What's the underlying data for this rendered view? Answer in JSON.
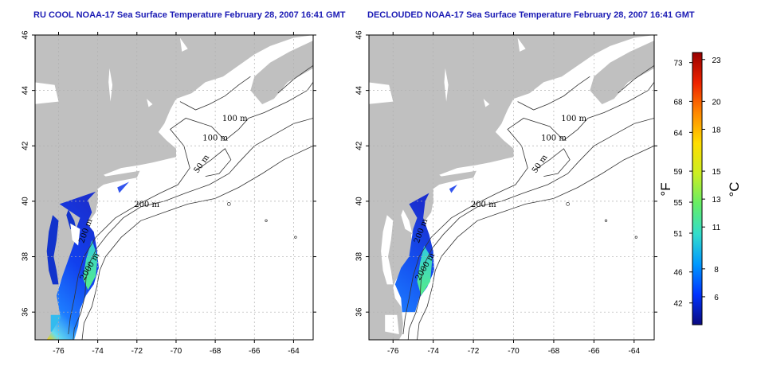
{
  "panels": [
    {
      "title": "RU COOL NOAA-17 Sea Surface Temperature February 28, 2007 16:41 GMT",
      "kind": "raw"
    },
    {
      "title": "DECLOUDED NOAA-17 Sea Surface Temperature February 28, 2007 16:41 GMT",
      "kind": "declouded"
    }
  ],
  "map_axes": {
    "lon_ticks": [
      "-76",
      "-74",
      "-72",
      "-70",
      "-68",
      "-66",
      "-64"
    ],
    "lat_ticks": [
      "36",
      "38",
      "40",
      "42",
      "44",
      "46"
    ],
    "lon_range": [
      -77.2,
      -63
    ],
    "lat_range": [
      35,
      46
    ]
  },
  "contour_labels": [
    "100 m",
    "100 m",
    "50 m",
    "200 m",
    "2000 m",
    "200 m"
  ],
  "colorbar": {
    "fahrenheit_ticks": [
      "73",
      "68",
      "64",
      "59",
      "55",
      "51",
      "46",
      "42"
    ],
    "celsius_ticks": [
      "23",
      "20",
      "18",
      "15",
      "13",
      "11",
      "8",
      "6"
    ],
    "fahrenheit_label": "°F",
    "celsius_label": "°C",
    "range_c": [
      4,
      23.5
    ],
    "colors": [
      "#0a0a80",
      "#0033ff",
      "#0099ff",
      "#33ddcc",
      "#66ee66",
      "#ccee22",
      "#ffdd00",
      "#ff8800",
      "#ee2200",
      "#990000"
    ]
  },
  "colors": {
    "land": "#c0c0c0",
    "title": "#1a1ab4",
    "grid": "#b0b0b0"
  }
}
